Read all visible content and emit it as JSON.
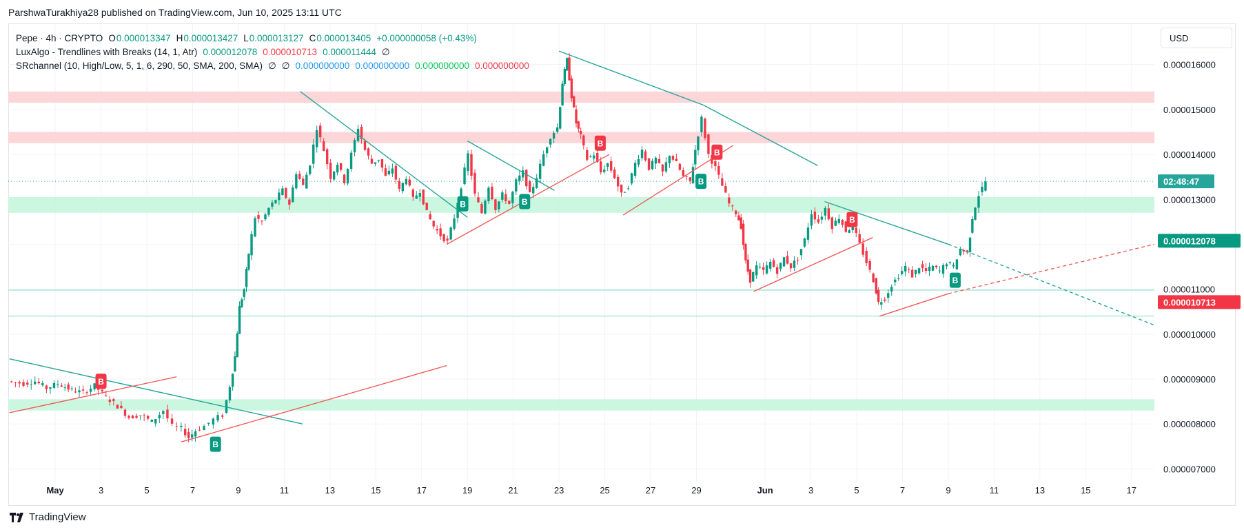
{
  "attribution": "ParshwaTurakhiya28 published on TradingView.com, Jun 10, 2025 13:11 UTC",
  "currency": "USD",
  "brand": "TradingView",
  "legend": {
    "symbol": "Pepe · 4h · CRYPTO",
    "o_label": "O",
    "o": "0.000013347",
    "h_label": "H",
    "h": "0.000013427",
    "l_label": "L",
    "l": "0.000013127",
    "c_label": "C",
    "c": "0.000013405",
    "change": "+0.000000058 (+0.43%)",
    "lux_name": "LuxAlgo - Trendlines with Breaks (14, 1, Atr)",
    "lux_v1": "0.000012078",
    "lux_v2": "0.000010713",
    "lux_v3": "0.000011444",
    "lux_v4": "∅",
    "sr_name": "SRchannel (10, High/Low, 5, 1, 6, 290, 50, SMA, 200, SMA)",
    "sr_v1": "∅",
    "sr_v2": "∅",
    "sr_v3": "0.000000000",
    "sr_v4": "0.000000000",
    "sr_v5": "0.000000000",
    "sr_v6": "0.000000000"
  },
  "colors": {
    "up": "#089981",
    "down": "#f23645",
    "trend_teal": "#26a69a",
    "trend_red": "#f05a5a",
    "zone_red": "#fcd2d5",
    "zone_green": "#c5f5dd",
    "grid": "#f0f3fa"
  },
  "chart_data": {
    "type": "candlestick",
    "timeframe": "4h",
    "yticks": [
      "0.000016000",
      "0.000015000",
      "0.000014000",
      "0.000013000",
      "0.000012000",
      "0.000011000",
      "0.000010000",
      "0.000009000",
      "0.000008000",
      "0.000007000"
    ],
    "ytick_values": [
      16,
      15,
      14,
      13,
      12,
      11,
      10,
      9,
      8,
      7
    ],
    "value_scale_note_units": "1e-6 USD",
    "ylim": [
      6.7,
      16.9
    ],
    "xticks": [
      {
        "label": "May",
        "x": 0.0,
        "bold": true
      },
      {
        "label": "3",
        "x": 2.0
      },
      {
        "label": "5",
        "x": 4.0
      },
      {
        "label": "7",
        "x": 6.0
      },
      {
        "label": "9",
        "x": 8.0
      },
      {
        "label": "11",
        "x": 10.0
      },
      {
        "label": "13",
        "x": 12.0
      },
      {
        "label": "15",
        "x": 14.0
      },
      {
        "label": "17",
        "x": 16.0
      },
      {
        "label": "19",
        "x": 18.0
      },
      {
        "label": "21",
        "x": 20.0
      },
      {
        "label": "23",
        "x": 22.0
      },
      {
        "label": "25",
        "x": 24.0
      },
      {
        "label": "27",
        "x": 26.0
      },
      {
        "label": "29",
        "x": 28.0
      },
      {
        "label": "Jun",
        "x": 31.0,
        "bold": true
      },
      {
        "label": "3",
        "x": 33.0
      },
      {
        "label": "5",
        "x": 35.0
      },
      {
        "label": "7",
        "x": 37.0
      },
      {
        "label": "9",
        "x": 39.0
      },
      {
        "label": "11",
        "x": 41.0
      },
      {
        "label": "13",
        "x": 43.0
      },
      {
        "label": "15",
        "x": 45.0
      },
      {
        "label": "17",
        "x": 47.0
      }
    ],
    "xlim": [
      -2.05,
      48.0
    ],
    "price_path": [
      [
        -2.0,
        8.95
      ],
      [
        -1.3,
        8.9
      ],
      [
        -0.8,
        8.95
      ],
      [
        -0.3,
        8.8
      ],
      [
        0.2,
        8.9
      ],
      [
        0.8,
        8.75
      ],
      [
        1.3,
        8.7
      ],
      [
        1.8,
        8.85
      ],
      [
        2.3,
        8.6
      ],
      [
        2.8,
        8.4
      ],
      [
        3.3,
        8.15
      ],
      [
        3.8,
        8.2
      ],
      [
        4.3,
        8.05
      ],
      [
        4.8,
        8.3
      ],
      [
        5.2,
        7.95
      ],
      [
        5.6,
        7.9
      ],
      [
        5.9,
        7.7
      ],
      [
        6.2,
        7.85
      ],
      [
        6.6,
        7.95
      ],
      [
        7.0,
        8.1
      ],
      [
        7.4,
        8.2
      ],
      [
        7.7,
        8.85
      ],
      [
        7.9,
        9.5
      ],
      [
        8.1,
        10.6
      ],
      [
        8.3,
        11.0
      ],
      [
        8.5,
        11.8
      ],
      [
        8.8,
        12.6
      ],
      [
        9.1,
        12.5
      ],
      [
        9.4,
        12.8
      ],
      [
        9.7,
        13.0
      ],
      [
        10.0,
        13.2
      ],
      [
        10.3,
        12.9
      ],
      [
        10.6,
        13.6
      ],
      [
        10.9,
        13.3
      ],
      [
        11.2,
        13.8
      ],
      [
        11.5,
        14.6
      ],
      [
        11.8,
        14.1
      ],
      [
        12.1,
        13.5
      ],
      [
        12.4,
        13.8
      ],
      [
        12.7,
        13.4
      ],
      [
        13.0,
        14.0
      ],
      [
        13.3,
        14.6
      ],
      [
        13.6,
        14.1
      ],
      [
        13.9,
        13.8
      ],
      [
        14.2,
        13.9
      ],
      [
        14.5,
        13.5
      ],
      [
        14.8,
        13.7
      ],
      [
        15.1,
        13.2
      ],
      [
        15.4,
        13.5
      ],
      [
        15.7,
        13.0
      ],
      [
        16.0,
        13.2
      ],
      [
        16.3,
        12.7
      ],
      [
        16.6,
        12.4
      ],
      [
        16.9,
        12.2
      ],
      [
        17.2,
        12.05
      ],
      [
        17.5,
        12.6
      ],
      [
        17.8,
        13.3
      ],
      [
        18.1,
        14.0
      ],
      [
        18.4,
        13.1
      ],
      [
        18.7,
        12.7
      ],
      [
        19.0,
        13.3
      ],
      [
        19.3,
        12.8
      ],
      [
        19.6,
        13.1
      ],
      [
        19.9,
        12.9
      ],
      [
        20.2,
        13.4
      ],
      [
        20.5,
        13.6
      ],
      [
        20.8,
        13.1
      ],
      [
        21.1,
        13.5
      ],
      [
        21.4,
        14.0
      ],
      [
        21.7,
        14.4
      ],
      [
        22.0,
        14.6
      ],
      [
        22.2,
        15.6
      ],
      [
        22.4,
        16.1
      ],
      [
        22.6,
        15.3
      ],
      [
        22.8,
        14.7
      ],
      [
        23.0,
        14.4
      ],
      [
        23.3,
        13.9
      ],
      [
        23.6,
        14.0
      ],
      [
        23.9,
        13.6
      ],
      [
        24.2,
        13.8
      ],
      [
        24.5,
        13.5
      ],
      [
        24.8,
        13.1
      ],
      [
        25.1,
        13.3
      ],
      [
        25.4,
        13.8
      ],
      [
        25.7,
        14.1
      ],
      [
        26.0,
        13.7
      ],
      [
        26.3,
        13.9
      ],
      [
        26.6,
        13.6
      ],
      [
        26.9,
        14.0
      ],
      [
        27.2,
        13.8
      ],
      [
        27.5,
        13.5
      ],
      [
        27.8,
        13.4
      ],
      [
        28.0,
        14.1
      ],
      [
        28.3,
        14.8
      ],
      [
        28.6,
        14.0
      ],
      [
        28.9,
        13.7
      ],
      [
        29.2,
        13.3
      ],
      [
        29.5,
        12.9
      ],
      [
        29.8,
        12.7
      ],
      [
        30.0,
        12.4
      ],
      [
        30.2,
        11.6
      ],
      [
        30.4,
        11.2
      ],
      [
        30.7,
        11.5
      ],
      [
        31.0,
        11.4
      ],
      [
        31.3,
        11.6
      ],
      [
        31.6,
        11.4
      ],
      [
        31.9,
        11.7
      ],
      [
        32.2,
        11.5
      ],
      [
        32.5,
        11.7
      ],
      [
        32.8,
        12.1
      ],
      [
        33.1,
        12.7
      ],
      [
        33.4,
        12.5
      ],
      [
        33.7,
        12.8
      ],
      [
        34.0,
        12.4
      ],
      [
        34.3,
        12.6
      ],
      [
        34.6,
        12.3
      ],
      [
        34.9,
        12.4
      ],
      [
        35.2,
        12.0
      ],
      [
        35.5,
        11.6
      ],
      [
        35.8,
        11.2
      ],
      [
        36.0,
        10.7
      ],
      [
        36.3,
        10.8
      ],
      [
        36.6,
        11.1
      ],
      [
        36.9,
        11.3
      ],
      [
        37.2,
        11.5
      ],
      [
        37.5,
        11.3
      ],
      [
        37.8,
        11.5
      ],
      [
        38.1,
        11.4
      ],
      [
        38.4,
        11.5
      ],
      [
        38.7,
        11.4
      ],
      [
        39.0,
        11.6
      ],
      [
        39.3,
        11.5
      ],
      [
        39.6,
        11.9
      ],
      [
        39.9,
        11.8
      ],
      [
        40.1,
        12.6
      ],
      [
        40.4,
        13.1
      ],
      [
        40.7,
        13.4
      ]
    ],
    "trendlines_teal": [
      [
        [
          -2.0,
          9.45
        ],
        [
          10.8,
          8.0
        ]
      ],
      [
        [
          10.7,
          15.4
        ],
        [
          18.0,
          12.6
        ]
      ],
      [
        [
          18.0,
          14.3
        ],
        [
          21.8,
          13.2
        ]
      ],
      [
        [
          22.0,
          16.3
        ],
        [
          28.3,
          15.1
        ]
      ],
      [
        [
          28.3,
          15.1
        ],
        [
          33.3,
          13.75
        ]
      ],
      [
        [
          33.6,
          12.95
        ],
        [
          39.0,
          12.0
        ]
      ]
    ],
    "trendlines_teal_dashed": [
      [
        [
          39.0,
          12.0
        ],
        [
          48.0,
          10.2
        ]
      ]
    ],
    "trendlines_red": [
      [
        [
          -2.0,
          8.25
        ],
        [
          5.3,
          9.05
        ]
      ],
      [
        [
          5.5,
          7.6
        ],
        [
          17.1,
          9.3
        ]
      ],
      [
        [
          17.1,
          12.0
        ],
        [
          24.2,
          14.0
        ]
      ],
      [
        [
          24.8,
          12.65
        ],
        [
          29.6,
          14.2
        ]
      ],
      [
        [
          30.5,
          10.95
        ],
        [
          35.7,
          12.15
        ]
      ],
      [
        [
          36.0,
          10.4
        ],
        [
          39.0,
          10.9
        ]
      ]
    ],
    "trendlines_red_dashed": [
      [
        [
          39.0,
          10.9
        ],
        [
          48.0,
          12.0
        ]
      ]
    ],
    "zones": [
      {
        "from": 15.15,
        "to": 15.4,
        "kind": "red"
      },
      {
        "from": 14.25,
        "to": 14.5,
        "kind": "red"
      },
      {
        "from": 12.7,
        "to": 13.05,
        "kind": "green"
      },
      {
        "from": 8.3,
        "to": 8.55,
        "kind": "green"
      }
    ],
    "horizontal_lines": [
      10.98,
      10.4
    ],
    "last_price_line": 13.4,
    "signals": [
      {
        "x": 2.0,
        "y": 8.95,
        "label": "B",
        "kind": "sell"
      },
      {
        "x": 7.0,
        "y": 7.55,
        "label": "B",
        "kind": "buy"
      },
      {
        "x": 17.8,
        "y": 12.9,
        "label": "B",
        "kind": "buy"
      },
      {
        "x": 20.5,
        "y": 12.95,
        "label": "B",
        "kind": "buy"
      },
      {
        "x": 23.8,
        "y": 14.25,
        "label": "B",
        "kind": "sell"
      },
      {
        "x": 28.2,
        "y": 13.4,
        "label": "B",
        "kind": "buy"
      },
      {
        "x": 28.9,
        "y": 14.05,
        "label": "B",
        "kind": "sell"
      },
      {
        "x": 34.8,
        "y": 12.55,
        "label": "B",
        "kind": "sell"
      },
      {
        "x": 39.3,
        "y": 11.2,
        "label": "B",
        "kind": "buy"
      }
    ],
    "price_tags": [
      {
        "text": "02:48:47",
        "y": 13.4,
        "bg": "#26a69a"
      },
      {
        "text": "0.000012078",
        "y": 12.078,
        "bg": "#089981"
      },
      {
        "text": "0.000010713",
        "y": 10.713,
        "bg": "#f23645"
      }
    ]
  }
}
